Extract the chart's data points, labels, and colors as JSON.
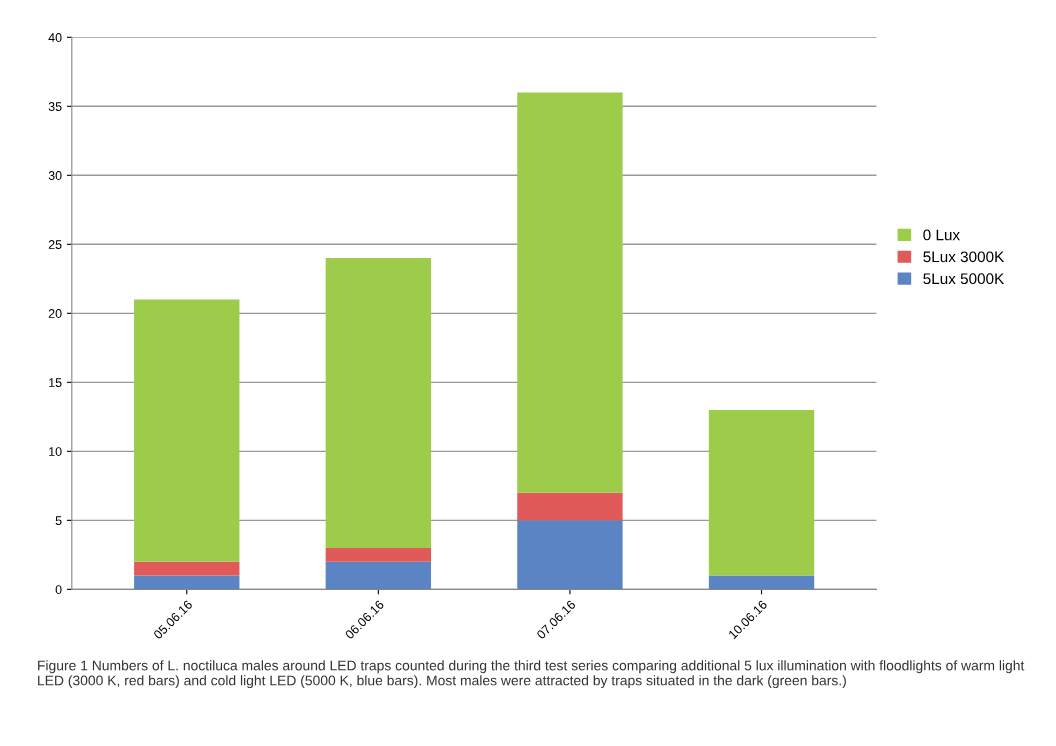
{
  "chart_data": {
    "type": "bar",
    "stacked": true,
    "categories": [
      "05.06.16",
      "06.06.16",
      "07.06.16",
      "10.06.16"
    ],
    "series": [
      {
        "name": "5Lux 5000K",
        "color": "#5b84c4",
        "values": [
          1,
          2,
          5,
          1
        ]
      },
      {
        "name": "5Lux 3000K",
        "color": "#e05a5a",
        "values": [
          1,
          1,
          2,
          0
        ]
      },
      {
        "name": "0 Lux",
        "color": "#9ccc4a",
        "values": [
          19,
          21,
          29,
          12
        ]
      }
    ],
    "ylim": [
      0,
      40
    ],
    "yticks": [
      0,
      5,
      10,
      15,
      20,
      25,
      30,
      35,
      40
    ],
    "grid": "y",
    "legend": "right",
    "annotations": [
      "Figure 1 Numbers of L. noctiluca males around LED traps counted during the third test series comparing additional 5 lux illumination with floodlights of warm light LED (3000 K, red bars) and cold light LED (5000 K, blue bars). Most males were attracted by traps situated in the dark (green bars.)"
    ]
  }
}
